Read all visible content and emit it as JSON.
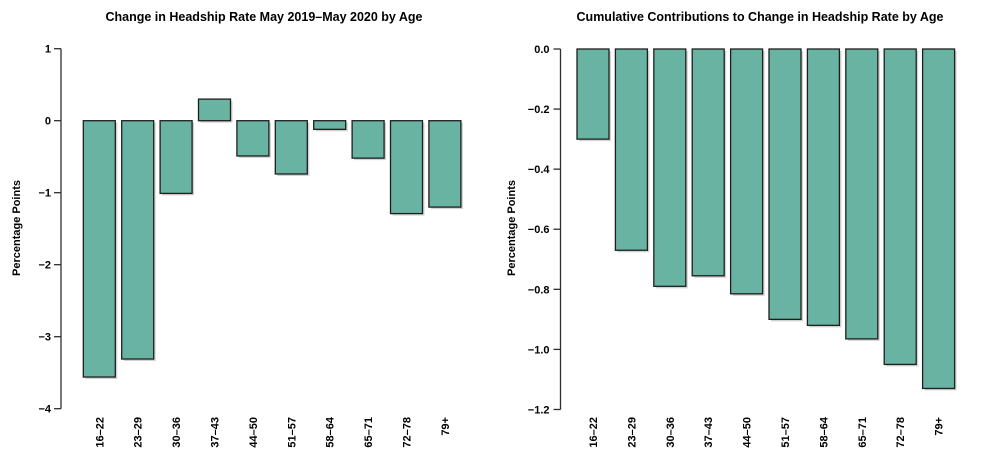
{
  "page": {
    "background": "#ffffff"
  },
  "chart_data": [
    {
      "type": "bar",
      "title": "Change in Headship Rate May 2019–May 2020 by Age",
      "ylabel": "Percentage Points",
      "xlabel": "",
      "categories": [
        "16–22",
        "23–29",
        "30–36",
        "37–43",
        "44–50",
        "51–57",
        "58–64",
        "65–71",
        "72–78",
        "79+"
      ],
      "values": [
        -3.56,
        -3.31,
        -1.01,
        0.3,
        -0.49,
        -0.74,
        -0.12,
        -0.52,
        -1.29,
        -1.2
      ],
      "ylim": [
        -4,
        1
      ],
      "yticks": [
        1,
        0,
        -1,
        -2,
        -3,
        -4
      ],
      "ytick_labels": [
        "1",
        "0",
        "−1",
        "−2",
        "−3",
        "−4"
      ],
      "grid": false,
      "legend": false,
      "bar_color": "#69b3a2",
      "bar_border": "#1f1f1f",
      "shadow_color": "#adadad",
      "axis_color": "#2e2e2e"
    },
    {
      "type": "bar",
      "title": "Cumulative Contributions to Change in Headship Rate by Age",
      "ylabel": "Percentage Points",
      "xlabel": "",
      "categories": [
        "16–22",
        "23–29",
        "30–36",
        "37–43",
        "44–50",
        "51–57",
        "58–64",
        "65–71",
        "72–78",
        "79+"
      ],
      "values": [
        -0.3,
        -0.67,
        -0.79,
        -0.755,
        -0.815,
        -0.9,
        -0.92,
        -0.965,
        -1.05,
        -1.13
      ],
      "ylim": [
        -1.2,
        0
      ],
      "yticks": [
        0,
        -0.2,
        -0.4,
        -0.6,
        -0.8,
        -1.0,
        -1.2
      ],
      "ytick_labels": [
        "0.0",
        "−0.2",
        "−0.4",
        "−0.6",
        "−0.8",
        "−1.0",
        "−1.2"
      ],
      "grid": false,
      "legend": false,
      "bar_color": "#69b3a2",
      "bar_border": "#1f1f1f",
      "shadow_color": "#adadad",
      "axis_color": "#2e2e2e"
    }
  ]
}
